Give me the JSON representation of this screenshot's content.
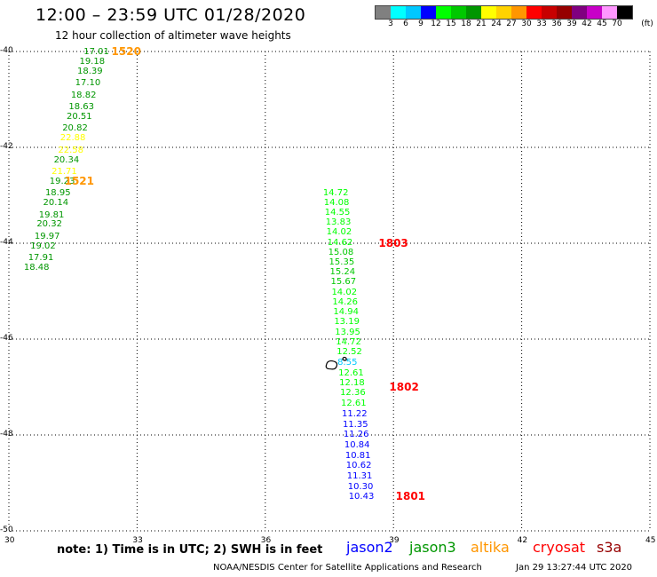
{
  "header": {
    "title": "12:00 – 23:59 UTC 01/28/2020",
    "subtitle": "12 hour collection of altimeter wave heights"
  },
  "color_scale": {
    "unit_label": "(ft)",
    "colors": [
      "#808080",
      "#00ffff",
      "#00c8ff",
      "#0000ff",
      "#00ff00",
      "#00c800",
      "#009600",
      "#ffff00",
      "#ffd200",
      "#ff9600",
      "#ff0000",
      "#c80000",
      "#960000",
      "#800080",
      "#c800c8",
      "#ff96ff",
      "#000000"
    ],
    "labels": [
      "3",
      "6",
      "9",
      "12",
      "15",
      "18",
      "21",
      "24",
      "27",
      "30",
      "33",
      "36",
      "39",
      "42",
      "45",
      "70"
    ]
  },
  "axes": {
    "lon_range": [
      30,
      45
    ],
    "lat_range": [
      -50,
      -40
    ],
    "x_ticks": [
      "30",
      "33",
      "36",
      "39",
      "42",
      "45"
    ],
    "y_ticks": [
      "-40",
      "-42",
      "-44",
      "-46",
      "-48",
      "-50"
    ],
    "grid": "dotted"
  },
  "tracks": [
    {
      "label_values": [
        "1520",
        "1521"
      ],
      "points": [
        {
          "lon": 32.0,
          "lat": -40.0,
          "value": "17.01",
          "color": "#009600"
        },
        {
          "lon": 31.9,
          "lat": -40.2,
          "value": "19.18",
          "color": "#009600"
        },
        {
          "lon": 31.85,
          "lat": -40.4,
          "value": "18.39",
          "color": "#009600"
        },
        {
          "lon": 31.8,
          "lat": -40.65,
          "value": "17.10",
          "color": "#009600"
        },
        {
          "lon": 31.7,
          "lat": -40.9,
          "value": "18.82",
          "color": "#009600"
        },
        {
          "lon": 31.65,
          "lat": -41.15,
          "value": "18.63",
          "color": "#009600"
        },
        {
          "lon": 31.6,
          "lat": -41.35,
          "value": "20.51",
          "color": "#009600"
        },
        {
          "lon": 31.5,
          "lat": -41.6,
          "value": "20.82",
          "color": "#009600"
        },
        {
          "lon": 31.45,
          "lat": -41.8,
          "value": "22.88",
          "color": "#ffff00"
        },
        {
          "lon": 31.4,
          "lat": -42.05,
          "value": "22.58",
          "color": "#ffff00"
        },
        {
          "lon": 31.3,
          "lat": -42.25,
          "value": "20.34",
          "color": "#009600"
        },
        {
          "lon": 31.25,
          "lat": -42.5,
          "value": "21.71",
          "color": "#ffff00"
        },
        {
          "lon": 31.2,
          "lat": -42.7,
          "value": "19.23",
          "color": "#009600"
        },
        {
          "lon": 31.1,
          "lat": -42.95,
          "value": "18.95",
          "color": "#009600"
        },
        {
          "lon": 31.05,
          "lat": -43.15,
          "value": "20.14",
          "color": "#009600"
        },
        {
          "lon": 30.95,
          "lat": -43.4,
          "value": "19.81",
          "color": "#009600"
        },
        {
          "lon": 30.9,
          "lat": -43.6,
          "value": "20.32",
          "color": "#009600"
        },
        {
          "lon": 30.85,
          "lat": -43.85,
          "value": "19.97",
          "color": "#009600"
        },
        {
          "lon": 30.75,
          "lat": -44.05,
          "value": "19.02",
          "color": "#009600"
        },
        {
          "lon": 30.7,
          "lat": -44.3,
          "value": "17.91",
          "color": "#009600"
        },
        {
          "lon": 30.6,
          "lat": -44.5,
          "value": "18.48",
          "color": "#009600"
        }
      ],
      "times": [
        {
          "text": "1520",
          "lon": 32.65,
          "lat": -40.0,
          "color": "#ff9600"
        },
        {
          "text": "1521",
          "lon": 31.55,
          "lat": -42.7,
          "color": "#ff9600"
        }
      ]
    },
    {
      "label_values": [
        "1801",
        "1802",
        "1803"
      ],
      "points": [
        {
          "lon": 37.6,
          "lat": -42.95,
          "value": "14.72",
          "color": "#00ff00"
        },
        {
          "lon": 37.62,
          "lat": -43.15,
          "value": "14.08",
          "color": "#00ff00"
        },
        {
          "lon": 37.64,
          "lat": -43.35,
          "value": "14.55",
          "color": "#00ff00"
        },
        {
          "lon": 37.66,
          "lat": -43.55,
          "value": "13.83",
          "color": "#00ff00"
        },
        {
          "lon": 37.68,
          "lat": -43.75,
          "value": "14.02",
          "color": "#00ff00"
        },
        {
          "lon": 37.7,
          "lat": -43.98,
          "value": "14.62",
          "color": "#00ff00"
        },
        {
          "lon": 37.72,
          "lat": -44.18,
          "value": "15.08",
          "color": "#00c800"
        },
        {
          "lon": 37.74,
          "lat": -44.38,
          "value": "15.35",
          "color": "#00c800"
        },
        {
          "lon": 37.76,
          "lat": -44.6,
          "value": "15.24",
          "color": "#00c800"
        },
        {
          "lon": 37.78,
          "lat": -44.8,
          "value": "15.67",
          "color": "#00c800"
        },
        {
          "lon": 37.8,
          "lat": -45.02,
          "value": "14.02",
          "color": "#00ff00"
        },
        {
          "lon": 37.82,
          "lat": -45.22,
          "value": "14.26",
          "color": "#00ff00"
        },
        {
          "lon": 37.84,
          "lat": -45.42,
          "value": "14.94",
          "color": "#00ff00"
        },
        {
          "lon": 37.86,
          "lat": -45.63,
          "value": "13.19",
          "color": "#00ff00"
        },
        {
          "lon": 37.88,
          "lat": -45.85,
          "value": "13.95",
          "color": "#00ff00"
        },
        {
          "lon": 37.9,
          "lat": -46.05,
          "value": "14.72",
          "color": "#00ff00"
        },
        {
          "lon": 37.92,
          "lat": -46.25,
          "value": "12.52",
          "color": "#00ff00"
        },
        {
          "lon": 37.94,
          "lat": -46.48,
          "value": "8.55",
          "color": "#00c8ff"
        },
        {
          "lon": 37.96,
          "lat": -46.7,
          "value": "12.61",
          "color": "#00ff00"
        },
        {
          "lon": 37.98,
          "lat": -46.9,
          "value": "12.18",
          "color": "#00ff00"
        },
        {
          "lon": 38.0,
          "lat": -47.12,
          "value": "12.36",
          "color": "#00ff00"
        },
        {
          "lon": 38.02,
          "lat": -47.33,
          "value": "12.61",
          "color": "#00ff00"
        },
        {
          "lon": 38.04,
          "lat": -47.55,
          "value": "11.22",
          "color": "#0000ff"
        },
        {
          "lon": 38.06,
          "lat": -47.77,
          "value": "11.35",
          "color": "#0000ff"
        },
        {
          "lon": 38.08,
          "lat": -47.98,
          "value": "11.26",
          "color": "#0000ff"
        },
        {
          "lon": 38.1,
          "lat": -48.2,
          "value": "10.84",
          "color": "#0000ff"
        },
        {
          "lon": 38.12,
          "lat": -48.42,
          "value": "10.81",
          "color": "#0000ff"
        },
        {
          "lon": 38.14,
          "lat": -48.63,
          "value": "10.62",
          "color": "#0000ff"
        },
        {
          "lon": 38.16,
          "lat": -48.85,
          "value": "11.31",
          "color": "#0000ff"
        },
        {
          "lon": 38.18,
          "lat": -49.07,
          "value": "10.30",
          "color": "#0000ff"
        },
        {
          "lon": 38.2,
          "lat": -49.28,
          "value": "10.43",
          "color": "#0000ff"
        }
      ],
      "times": [
        {
          "text": "1803",
          "lon": 38.9,
          "lat": -44.0,
          "color": "#ff0000"
        },
        {
          "text": "1802",
          "lon": 39.15,
          "lat": -47.0,
          "color": "#ff0000"
        },
        {
          "text": "1801",
          "lon": 39.3,
          "lat": -49.28,
          "color": "#ff0000"
        }
      ]
    }
  ],
  "land_features": [
    {
      "name": "island-large",
      "lon": 37.55,
      "lat": -46.55
    },
    {
      "name": "island-small",
      "lon": 37.85,
      "lat": -46.42
    }
  ],
  "footer": {
    "note": "note:  1) Time is in UTC;  2) SWH is in feet",
    "satellites": [
      {
        "name": "jason2",
        "color": "#0000ff"
      },
      {
        "name": "jason3",
        "color": "#009600"
      },
      {
        "name": "altika",
        "color": "#ff9600"
      },
      {
        "name": "cryosat",
        "color": "#ff0000"
      },
      {
        "name": "s3a",
        "color": "#960000"
      }
    ],
    "credit": "NOAA/NESDIS Center for Satellite Applications and Research",
    "generated": "Jan 29 13:27:44 UTC 2020"
  }
}
